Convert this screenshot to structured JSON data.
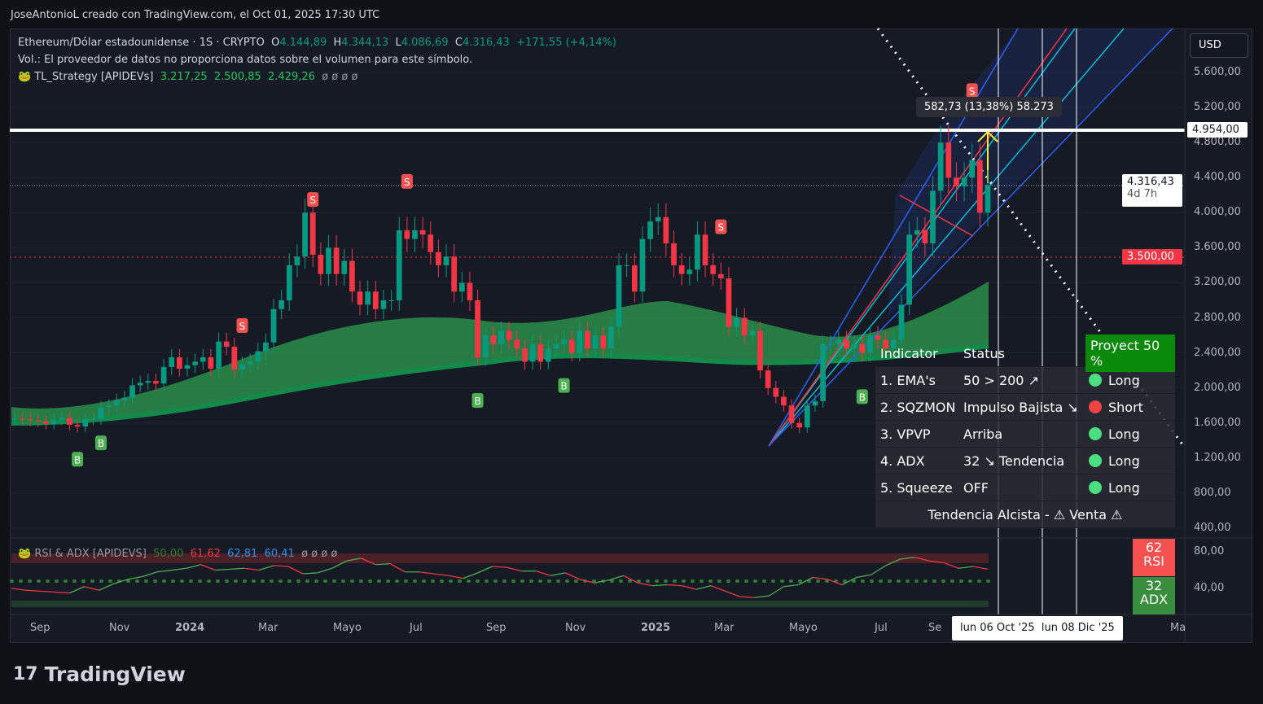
{
  "credit": "JoseAntonioL creado con TradingView.com, el Oct 01, 2025 17:30 UTC",
  "header": {
    "symbol": "Ethereum/Dólar estadounidense · 1S · CRYPTO",
    "o_label": "O",
    "o": "4.144,89",
    "h_label": "H",
    "h": "4.344,13",
    "l_label": "L",
    "l": "4.086,69",
    "c_label": "C",
    "c": "4.316,43",
    "change": "+171,55 (+4,14%)",
    "volume_note": "Vol.: El proveedor de datos no proporciona datos sobre el volumen para este símbolo.",
    "strategy_name": "TL_Strategy [APIDEVs]",
    "strategy_values": [
      "3.217,25",
      "2.500,85",
      "2.429,26"
    ],
    "null_values": "ø ø ø ø"
  },
  "currency": "USD",
  "measure_tooltip": "582,73 (13,38%) 58.273",
  "price_labels": {
    "level": "4.954,00",
    "last": "4.316,43",
    "countdown": "4d 7h",
    "support": "3.500,00"
  },
  "table": {
    "headers": [
      "Indicator",
      "Status",
      "Proyect 50 %"
    ],
    "rows": [
      {
        "name": "1. EMA's",
        "status": "50 > 200 ↗",
        "signal": "Long",
        "color": "#4ade80"
      },
      {
        "name": "2. SQZMON",
        "status": "Impulso Bajista ↘",
        "signal": "Short",
        "color": "#ef4444"
      },
      {
        "name": "3. VPVP",
        "status": "Arriba",
        "signal": "Long",
        "color": "#4ade80"
      },
      {
        "name": "4. ADX",
        "status": "32 ↘ Tendencia",
        "signal": "Long",
        "color": "#4ade80"
      },
      {
        "name": "5. Squeeze",
        "status": "OFF",
        "signal": "Long",
        "color": "#4ade80"
      }
    ],
    "footer": "Tendencia Alcista - ⚠  Venta ⚠"
  },
  "rsi_legend": {
    "name": "RSI & ADX [APIDEVS]",
    "values": [
      "50,00",
      "61,62",
      "62,81",
      "60,41"
    ],
    "nulls": "ø ø ø ø"
  },
  "badges": {
    "rsi_value": "62",
    "rsi_label": "RSI",
    "adx_value": "32",
    "adx_label": "ADX"
  },
  "x_labels": [
    "Sep",
    "Nov",
    "2024",
    "Mar",
    "Mayo",
    "Jul",
    "Sep",
    "Nov",
    "2025",
    "Mar",
    "Mayo",
    "Jul",
    "Se",
    "Ma"
  ],
  "crosshair_dates": [
    "lun 06 Oct '25",
    "lun 08 Dic '25"
  ],
  "logo": "TradingView",
  "chart_data": {
    "type": "candlestick",
    "y_ticks": [
      "5.600,00",
      "5.200,00",
      "4.800,00",
      "4.400,00",
      "4.000,00",
      "3.600,00",
      "3.200,00",
      "2.800,00",
      "2.400,00",
      "2.000,00",
      "1.600,00",
      "1.200,00",
      "800,00",
      "400,00"
    ],
    "ylim": [
      400,
      5600
    ],
    "rsi_ticks": [
      "80,00",
      "40,00"
    ],
    "closes": [
      1650,
      1640,
      1630,
      1620,
      1590,
      1640,
      1660,
      1580,
      1560,
      1640,
      1650,
      1780,
      1800,
      1860,
      1890,
      2030,
      2060,
      2080,
      2050,
      2240,
      2350,
      2220,
      2260,
      2300,
      2350,
      2220,
      2530,
      2470,
      2210,
      2270,
      2300,
      2420,
      2520,
      2900,
      3000,
      3400,
      3500,
      4000,
      3520,
      3300,
      3600,
      3300,
      3450,
      3100,
      2950,
      3100,
      2900,
      3000,
      3000,
      3800,
      3700,
      3800,
      3750,
      3550,
      3400,
      3500,
      3100,
      3200,
      3000,
      2350,
      2600,
      2500,
      2650,
      2550,
      2450,
      2300,
      2500,
      2300,
      2450,
      2500,
      2550,
      2400,
      2650,
      2450,
      2600,
      2450,
      2700,
      3400,
      3400,
      3100,
      3700,
      3900,
      3950,
      3650,
      3400,
      3300,
      3350,
      3750,
      3400,
      3300,
      3250,
      2700,
      2800,
      2600,
      2650,
      2200,
      2000,
      1900,
      1800,
      1600,
      1550,
      1800,
      1850,
      2500,
      2500,
      2550,
      2450,
      2500,
      2400,
      2600,
      2550,
      2450,
      2550,
      2950,
      3750,
      3800,
      3650,
      4250,
      4800,
      4400,
      4300,
      4400,
      4600,
      4000,
      4316
    ],
    "rsi": [
      40,
      38,
      37,
      36,
      35,
      42,
      38,
      45,
      50,
      53,
      58,
      60,
      62,
      66,
      60,
      61,
      62,
      60,
      65,
      64,
      56,
      57,
      62,
      70,
      73,
      66,
      67,
      58,
      58,
      56,
      54,
      51,
      57,
      64,
      63,
      59,
      59,
      54,
      57,
      50,
      46,
      49,
      54,
      46,
      43,
      44,
      43,
      39,
      43,
      37,
      31,
      30,
      32,
      42,
      44,
      52,
      50,
      44,
      52,
      55,
      65,
      72,
      74,
      70,
      68,
      62,
      64,
      61
    ],
    "markers": [
      {
        "label": "B",
        "i": 8
      },
      {
        "label": "B",
        "i": 11
      },
      {
        "label": "S",
        "i": 29
      },
      {
        "label": "S",
        "i": 38
      },
      {
        "label": "S",
        "i": 50
      },
      {
        "label": "B",
        "i": 59
      },
      {
        "label": "B",
        "i": 70
      },
      {
        "label": "S",
        "i": 90
      },
      {
        "label": "B",
        "i": 108
      },
      {
        "label": "S",
        "i": 122
      }
    ],
    "levels": [
      4954,
      3500,
      4316.43
    ]
  }
}
